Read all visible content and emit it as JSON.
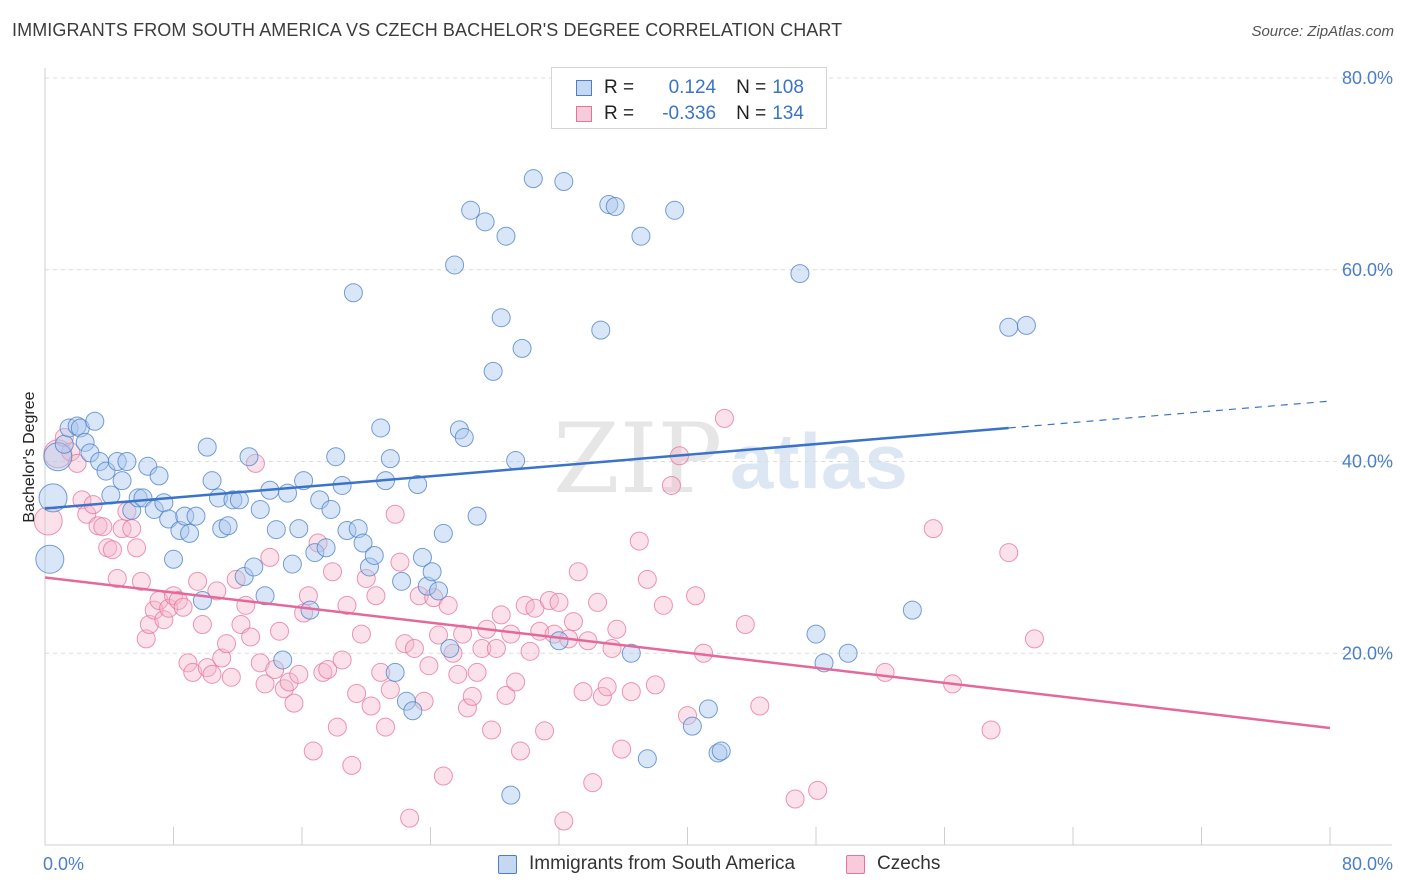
{
  "header": {
    "title": "IMMIGRANTS FROM SOUTH AMERICA VS CZECH BACHELOR'S DEGREE CORRELATION CHART",
    "source": "Source: ZipAtlas.com"
  },
  "watermark": {
    "part1": "ZIP",
    "part2": "atlas"
  },
  "stats": [
    {
      "r_label": "R =",
      "r_value": "0.124",
      "n_label": "N =",
      "n_value": "108",
      "color": "#4a7fc8"
    },
    {
      "r_label": "R =",
      "r_value": "-0.336",
      "n_label": "N =",
      "n_value": "134",
      "color": "#e8729b"
    }
  ],
  "legend": {
    "items": [
      {
        "label": "Immigrants from South America",
        "color": "#4a7fc8"
      },
      {
        "label": "Czechs",
        "color": "#e8729b"
      }
    ]
  },
  "chart_data": {
    "type": "scatter",
    "title": "IMMIGRANTS FROM SOUTH AMERICA VS CZECH BACHELOR'S DEGREE CORRELATION CHART",
    "xlabel": "",
    "ylabel": "Bachelor's Degree",
    "xlim": [
      0,
      80
    ],
    "ylim": [
      0,
      80
    ],
    "x_tick_labels": [
      "0.0%",
      "80.0%"
    ],
    "y_tick_labels": [
      "20.0%",
      "40.0%",
      "60.0%",
      "80.0%"
    ],
    "y_ticks": [
      20,
      40,
      60,
      80
    ],
    "grid": true,
    "legend_position": "bottom",
    "series": [
      {
        "name": "Immigrants from South America",
        "color": "#4a7fc8",
        "R": 0.124,
        "N": 108,
        "trendline": {
          "x": [
            0,
            60,
            80
          ],
          "y": [
            35.1,
            43.5,
            46.3
          ],
          "dashed_from_x": 60
        },
        "points": [
          [
            0.5,
            36.2
          ],
          [
            0.3,
            29.8
          ],
          [
            0.8,
            40.5
          ],
          [
            1.2,
            41.8
          ],
          [
            1.5,
            43.5
          ],
          [
            2.0,
            43.7
          ],
          [
            2.2,
            43.5
          ],
          [
            2.5,
            42.0
          ],
          [
            2.8,
            40.9
          ],
          [
            3.1,
            44.2
          ],
          [
            3.4,
            40.0
          ],
          [
            3.8,
            39.0
          ],
          [
            4.1,
            36.5
          ],
          [
            4.5,
            40.0
          ],
          [
            4.8,
            38.0
          ],
          [
            5.1,
            40.0
          ],
          [
            5.4,
            34.9
          ],
          [
            5.8,
            36.2
          ],
          [
            6.1,
            36.2
          ],
          [
            6.4,
            39.5
          ],
          [
            6.8,
            35.0
          ],
          [
            7.1,
            38.5
          ],
          [
            7.4,
            35.7
          ],
          [
            7.7,
            34.0
          ],
          [
            8.0,
            29.8
          ],
          [
            8.4,
            32.8
          ],
          [
            8.7,
            34.3
          ],
          [
            9.0,
            32.5
          ],
          [
            9.4,
            34.3
          ],
          [
            9.8,
            25.5
          ],
          [
            10.1,
            41.5
          ],
          [
            10.4,
            38.0
          ],
          [
            10.8,
            36.2
          ],
          [
            11.0,
            33.0
          ],
          [
            11.4,
            33.3
          ],
          [
            11.7,
            36.0
          ],
          [
            12.1,
            36.0
          ],
          [
            12.4,
            28.0
          ],
          [
            12.7,
            40.5
          ],
          [
            13.0,
            29.0
          ],
          [
            13.4,
            35.0
          ],
          [
            13.7,
            26.0
          ],
          [
            14.0,
            37.0
          ],
          [
            14.4,
            32.9
          ],
          [
            14.8,
            19.3
          ],
          [
            15.1,
            36.7
          ],
          [
            15.4,
            29.3
          ],
          [
            15.8,
            33.0
          ],
          [
            16.1,
            38.0
          ],
          [
            16.5,
            24.5
          ],
          [
            16.8,
            30.5
          ],
          [
            17.1,
            36.0
          ],
          [
            17.5,
            31.0
          ],
          [
            17.8,
            35.0
          ],
          [
            18.1,
            40.5
          ],
          [
            18.5,
            37.5
          ],
          [
            18.8,
            32.8
          ],
          [
            19.2,
            57.6
          ],
          [
            19.5,
            33.0
          ],
          [
            19.8,
            31.5
          ],
          [
            20.2,
            29.0
          ],
          [
            20.5,
            30.2
          ],
          [
            20.9,
            43.5
          ],
          [
            21.2,
            38.0
          ],
          [
            21.5,
            40.3
          ],
          [
            21.8,
            18.0
          ],
          [
            22.2,
            27.5
          ],
          [
            22.5,
            15.0
          ],
          [
            22.9,
            14.0
          ],
          [
            23.2,
            37.6
          ],
          [
            23.5,
            30.0
          ],
          [
            23.8,
            27.0
          ],
          [
            24.1,
            28.5
          ],
          [
            24.5,
            26.5
          ],
          [
            24.8,
            32.5
          ],
          [
            25.2,
            20.5
          ],
          [
            25.5,
            60.5
          ],
          [
            25.8,
            43.3
          ],
          [
            26.1,
            42.5
          ],
          [
            26.5,
            66.2
          ],
          [
            26.9,
            34.3
          ],
          [
            27.4,
            65.0
          ],
          [
            27.9,
            49.4
          ],
          [
            28.4,
            55.0
          ],
          [
            28.7,
            63.5
          ],
          [
            29.0,
            5.2
          ],
          [
            29.3,
            40.1
          ],
          [
            29.7,
            51.8
          ],
          [
            30.4,
            69.5
          ],
          [
            32.0,
            21.3
          ],
          [
            32.3,
            69.2
          ],
          [
            34.6,
            53.7
          ],
          [
            35.1,
            66.8
          ],
          [
            35.5,
            66.6
          ],
          [
            36.5,
            20.0
          ],
          [
            37.1,
            63.5
          ],
          [
            37.5,
            9.0
          ],
          [
            39.2,
            66.2
          ],
          [
            40.3,
            12.4
          ],
          [
            41.3,
            14.2
          ],
          [
            41.9,
            9.6
          ],
          [
            42.1,
            9.8
          ],
          [
            47.0,
            59.6
          ],
          [
            48.0,
            22.0
          ],
          [
            48.5,
            19.0
          ],
          [
            50.0,
            20.0
          ],
          [
            54.0,
            24.5
          ],
          [
            60.0,
            54.0
          ],
          [
            61.1,
            54.2
          ]
        ]
      },
      {
        "name": "Czechs",
        "color": "#e8729b",
        "R": -0.336,
        "N": 134,
        "trendline": {
          "x": [
            0,
            80
          ],
          "y": [
            27.9,
            12.2
          ]
        },
        "points": [
          [
            0.2,
            33.8
          ],
          [
            0.8,
            40.8
          ],
          [
            1.2,
            42.5
          ],
          [
            1.6,
            41.0
          ],
          [
            2.0,
            39.8
          ],
          [
            2.3,
            36.0
          ],
          [
            2.6,
            34.5
          ],
          [
            3.0,
            35.5
          ],
          [
            3.3,
            33.3
          ],
          [
            3.6,
            33.2
          ],
          [
            3.9,
            31.0
          ],
          [
            4.2,
            30.8
          ],
          [
            4.5,
            27.8
          ],
          [
            4.8,
            33.0
          ],
          [
            5.1,
            34.8
          ],
          [
            5.4,
            33.0
          ],
          [
            5.7,
            31.0
          ],
          [
            6.0,
            27.5
          ],
          [
            6.3,
            21.5
          ],
          [
            6.5,
            23.0
          ],
          [
            6.8,
            24.5
          ],
          [
            7.1,
            25.5
          ],
          [
            7.4,
            23.5
          ],
          [
            7.7,
            24.7
          ],
          [
            8.0,
            26.0
          ],
          [
            8.3,
            25.5
          ],
          [
            8.6,
            24.8
          ],
          [
            8.9,
            19.0
          ],
          [
            9.2,
            18.0
          ],
          [
            9.5,
            27.5
          ],
          [
            9.8,
            23.0
          ],
          [
            10.1,
            18.5
          ],
          [
            10.4,
            17.8
          ],
          [
            10.7,
            26.5
          ],
          [
            11.0,
            19.5
          ],
          [
            11.3,
            21.0
          ],
          [
            11.6,
            17.5
          ],
          [
            11.9,
            27.7
          ],
          [
            12.2,
            23.0
          ],
          [
            12.5,
            25.0
          ],
          [
            12.8,
            21.7
          ],
          [
            13.1,
            39.8
          ],
          [
            13.4,
            19.0
          ],
          [
            13.7,
            16.8
          ],
          [
            14.0,
            30.0
          ],
          [
            14.3,
            18.3
          ],
          [
            14.6,
            22.3
          ],
          [
            14.9,
            16.3
          ],
          [
            15.2,
            17.0
          ],
          [
            15.5,
            14.8
          ],
          [
            15.8,
            17.8
          ],
          [
            16.1,
            24.2
          ],
          [
            16.4,
            26.0
          ],
          [
            16.7,
            9.8
          ],
          [
            17.0,
            31.5
          ],
          [
            17.3,
            18.0
          ],
          [
            17.6,
            18.3
          ],
          [
            17.9,
            28.5
          ],
          [
            18.2,
            12.3
          ],
          [
            18.5,
            19.3
          ],
          [
            18.8,
            25.0
          ],
          [
            19.1,
            8.3
          ],
          [
            19.4,
            15.8
          ],
          [
            19.7,
            22.0
          ],
          [
            20.0,
            27.8
          ],
          [
            20.3,
            14.5
          ],
          [
            20.6,
            26.0
          ],
          [
            20.9,
            18.0
          ],
          [
            21.2,
            12.3
          ],
          [
            21.5,
            16.2
          ],
          [
            21.8,
            34.5
          ],
          [
            22.1,
            29.5
          ],
          [
            22.4,
            21.0
          ],
          [
            22.7,
            2.8
          ],
          [
            23.0,
            20.5
          ],
          [
            23.3,
            26.0
          ],
          [
            23.6,
            15.0
          ],
          [
            23.9,
            18.7
          ],
          [
            24.2,
            25.8
          ],
          [
            24.5,
            21.9
          ],
          [
            24.8,
            7.2
          ],
          [
            25.1,
            25.0
          ],
          [
            25.4,
            20.0
          ],
          [
            25.7,
            17.8
          ],
          [
            26.0,
            22.0
          ],
          [
            26.3,
            14.3
          ],
          [
            26.6,
            15.5
          ],
          [
            26.9,
            18.0
          ],
          [
            27.2,
            20.5
          ],
          [
            27.5,
            22.5
          ],
          [
            27.8,
            12.0
          ],
          [
            28.1,
            20.5
          ],
          [
            28.4,
            24.0
          ],
          [
            28.7,
            15.6
          ],
          [
            29.0,
            22.0
          ],
          [
            29.3,
            17.0
          ],
          [
            29.6,
            9.8
          ],
          [
            29.9,
            25.0
          ],
          [
            30.2,
            20.2
          ],
          [
            30.5,
            24.7
          ],
          [
            30.8,
            22.3
          ],
          [
            31.1,
            11.9
          ],
          [
            31.4,
            25.5
          ],
          [
            31.7,
            22.0
          ],
          [
            32.0,
            25.3
          ],
          [
            32.3,
            2.5
          ],
          [
            32.6,
            21.5
          ],
          [
            32.9,
            23.3
          ],
          [
            33.2,
            28.5
          ],
          [
            33.5,
            16.0
          ],
          [
            33.8,
            21.3
          ],
          [
            34.1,
            6.5
          ],
          [
            34.4,
            25.3
          ],
          [
            34.7,
            15.5
          ],
          [
            35.0,
            16.5
          ],
          [
            35.3,
            20.5
          ],
          [
            35.6,
            22.5
          ],
          [
            35.9,
            10.0
          ],
          [
            36.5,
            16.0
          ],
          [
            37.0,
            31.7
          ],
          [
            37.5,
            27.7
          ],
          [
            38.0,
            16.7
          ],
          [
            38.5,
            25.0
          ],
          [
            39.0,
            37.5
          ],
          [
            39.5,
            40.6
          ],
          [
            40.0,
            13.5
          ],
          [
            40.5,
            26.0
          ],
          [
            41.0,
            20.0
          ],
          [
            42.3,
            44.5
          ],
          [
            43.6,
            23.0
          ],
          [
            44.5,
            14.5
          ],
          [
            46.7,
            4.8
          ],
          [
            48.1,
            5.7
          ],
          [
            52.3,
            18.0
          ],
          [
            55.3,
            33.0
          ],
          [
            56.5,
            16.8
          ],
          [
            58.9,
            12.0
          ],
          [
            60.0,
            30.5
          ],
          [
            61.6,
            21.5
          ]
        ]
      }
    ]
  }
}
